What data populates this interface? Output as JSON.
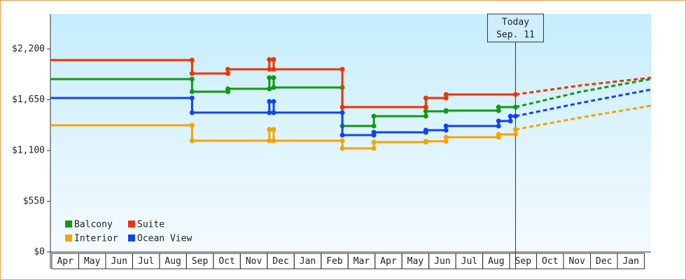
{
  "chart_data": {
    "type": "step-line",
    "categories": [
      "Apr",
      "May",
      "Jun",
      "Jul",
      "Aug",
      "Sep",
      "Oct",
      "Nov",
      "Dec",
      "Jan",
      "Feb",
      "Mar",
      "Apr",
      "May",
      "Jun",
      "Jul",
      "Aug",
      "Sep",
      "Oct",
      "Nov",
      "Dec",
      "Jan"
    ],
    "xlim": [
      0,
      22.3
    ],
    "ylim": [
      0,
      2579
    ],
    "yticks": [
      {
        "value": 0,
        "label": "$0"
      },
      {
        "value": 550,
        "label": "$550"
      },
      {
        "value": 1100,
        "label": "$1,100"
      },
      {
        "value": 1650,
        "label": "$1,650"
      },
      {
        "value": 2200,
        "label": "$2,200"
      }
    ],
    "annotation": {
      "lines": [
        "Today",
        "Sep. 11"
      ],
      "x": 17.27
    },
    "series": [
      {
        "name": "Balcony",
        "color": "#119911",
        "x": [
          0,
          5.26,
          6.59,
          8.13,
          8.29,
          10.84,
          12.01,
          13.94,
          14.69,
          16.64
        ],
        "values": [
          1874,
          1737,
          1768,
          1889,
          1783,
          1365,
          1472,
          1525,
          1532,
          1570
        ],
        "forecast_x": [
          17.27,
          19.69,
          22.3
        ],
        "forecast_values": [
          1570,
          1737,
          1874
        ]
      },
      {
        "name": "Suite",
        "color": "#ee3300",
        "x": [
          0,
          5.26,
          6.59,
          8.13,
          8.29,
          10.84,
          13.94,
          14.69
        ],
        "values": [
          2079,
          1934,
          1980,
          2086,
          1980,
          1570,
          1669,
          1707
        ],
        "forecast_x": [
          17.27,
          19.69,
          22.3
        ],
        "forecast_values": [
          1707,
          1805,
          1889
        ]
      },
      {
        "name": "Interior",
        "color": "#f5a300",
        "x": [
          0,
          5.26,
          8.13,
          8.29,
          10.84,
          12.01,
          13.94,
          14.69,
          16.64,
          17.27
        ],
        "values": [
          1373,
          1206,
          1328,
          1206,
          1123,
          1191,
          1199,
          1244,
          1274,
          1328
        ],
        "forecast_x": [
          17.27,
          19.69,
          22.3
        ],
        "forecast_values": [
          1328,
          1457,
          1585
        ]
      },
      {
        "name": "Ocean View",
        "color": "#1144ee",
        "x": [
          0,
          5.26,
          8.13,
          8.29,
          10.84,
          12.01,
          13.94,
          14.69,
          16.64,
          17.08
        ],
        "values": [
          1669,
          1510,
          1631,
          1510,
          1267,
          1297,
          1320,
          1365,
          1419,
          1472
        ],
        "forecast_x": [
          17.27,
          19.69,
          22.3
        ],
        "forecast_values": [
          1472,
          1616,
          1760
        ]
      }
    ]
  }
}
